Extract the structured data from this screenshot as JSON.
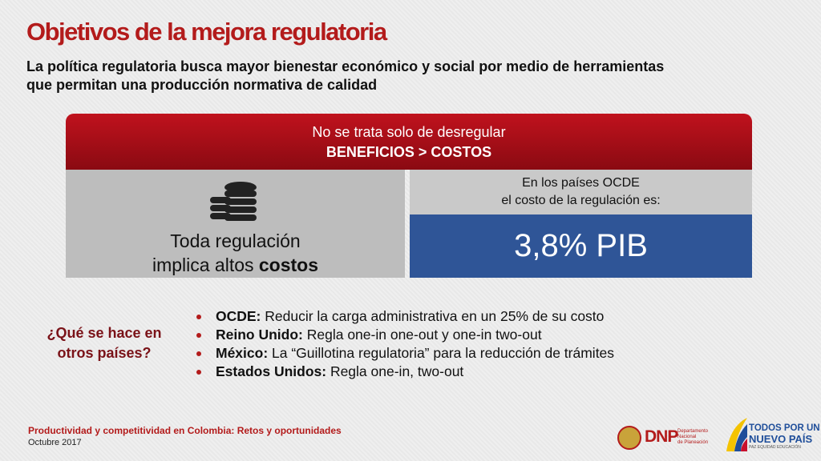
{
  "header": {
    "title": "Objetivos de la mejora regulatoria",
    "subtitle_lines": [
      "La política regulatoria busca mayor bienestar económico y social por medio de herramientas",
      "que permitan una producción normativa de calidad"
    ]
  },
  "banner": {
    "line1": "No se trata solo de desregular",
    "line2": "BENEFICIOS > COSTOS"
  },
  "left_panel": {
    "line1": "Toda regulación",
    "line2_plain": "implica altos ",
    "line2_bold": "costos"
  },
  "right_panel": {
    "caption_lines": [
      "En los países OCDE",
      "el costo de la regulación es:"
    ],
    "figure": "3,8% PIB"
  },
  "question_lines": [
    "¿Qué se hace en",
    "otros países?"
  ],
  "bullets": [
    {
      "label": "OCDE:",
      "text": " Reducir la carga administrativa en un 25% de su costo"
    },
    {
      "label": "Reino Unido:",
      "text": " Regla one-in one-out y one-in two-out"
    },
    {
      "label": "México:",
      "text": " La “Guillotina regulatoria” para la reducción de trámites"
    },
    {
      "label": "Estados Unidos:",
      "text": " Regla one-in, two-out"
    }
  ],
  "footer": {
    "title": "Productividad y competitividad en Colombia: Retos y oportunidades",
    "date": "Octubre 2017"
  },
  "logos": {
    "dnp": "DNP",
    "dnp_name_lines": [
      "Departamento",
      "Nacional",
      "de Planeación"
    ],
    "gov_lines": [
      "TODOS POR UN",
      "NUEVO PAÍS"
    ],
    "gov_tagline": "PAZ  EQUIDAD  EDUCACIÓN"
  }
}
